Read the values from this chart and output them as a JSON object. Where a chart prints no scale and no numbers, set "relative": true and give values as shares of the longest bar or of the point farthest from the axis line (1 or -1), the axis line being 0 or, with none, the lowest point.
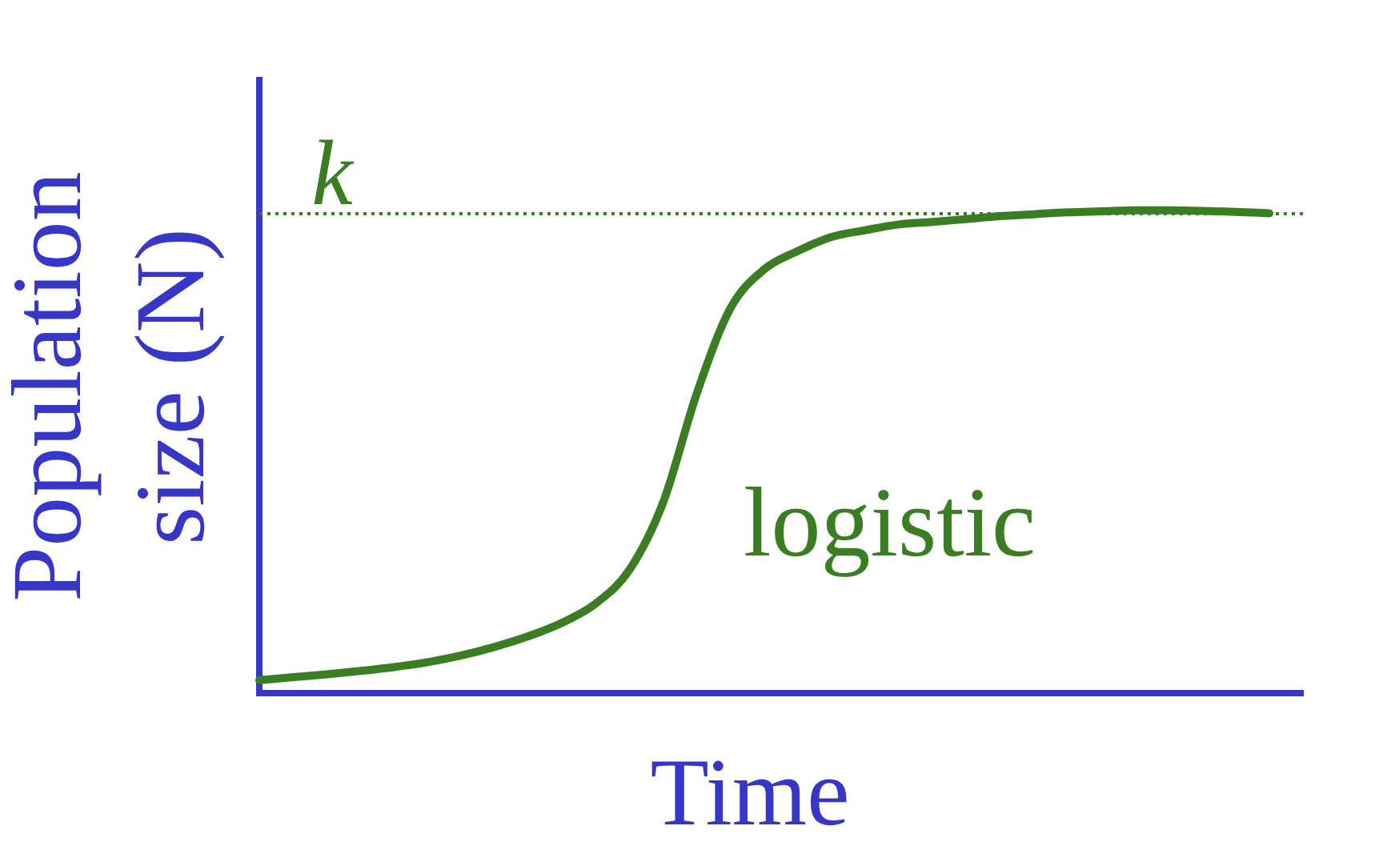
{
  "chart_data": {
    "type": "line",
    "xlabel": "Time",
    "ylabel": "Population size (N)",
    "relative": true,
    "tick_labels": false,
    "categories": [
      null,
      null,
      null,
      null,
      null,
      null,
      null,
      null,
      null,
      null,
      null,
      null,
      null,
      null,
      null,
      null,
      null,
      null,
      null,
      null,
      null,
      null,
      null,
      null,
      null,
      null,
      null,
      null,
      null,
      null,
      null,
      null
    ],
    "series": [
      {
        "name": "logistic",
        "color": "#3a7d22",
        "values": [
          0.027,
          0.033,
          0.039,
          0.046,
          0.054,
          0.064,
          0.078,
          0.096,
          0.118,
          0.146,
          0.186,
          0.256,
          0.396,
          0.622,
          0.798,
          0.878,
          0.916,
          0.945,
          0.959,
          0.971,
          0.976,
          0.982,
          0.988,
          0.992,
          0.996,
          0.998,
          1.0,
          1.0,
          0.999,
          0.997,
          0.994,
          null
        ]
      }
    ],
    "ref_lines": [
      {
        "axis": "y",
        "value": 0.993,
        "label": "k",
        "color": "#3a7d22",
        "line_style": "dotted"
      }
    ]
  }
}
